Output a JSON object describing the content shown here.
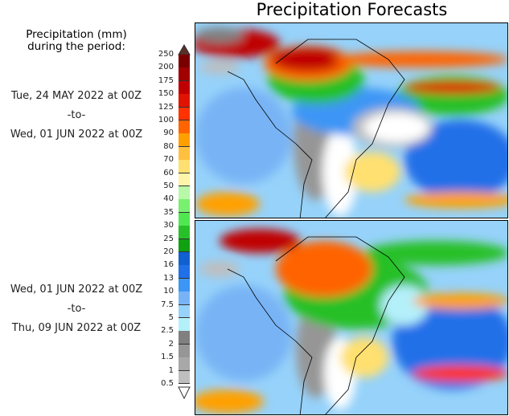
{
  "title": "Precipitation Forecasts",
  "legend": {
    "heading_line1": "Precipitation (mm)",
    "heading_line2": "during the period:",
    "labels": [
      "250",
      "200",
      "175",
      "150",
      "125",
      "100",
      "90",
      "80",
      "70",
      "60",
      "50",
      "40",
      "35",
      "30",
      "25",
      "20",
      "16",
      "13",
      "10",
      "7.5",
      "5",
      "2.5",
      "2",
      "1.5",
      "1",
      "0.5"
    ],
    "colors": [
      "#7a0000",
      "#a00000",
      "#c00000",
      "#e01400",
      "#ff3200",
      "#ff6400",
      "#ffa000",
      "#ffc040",
      "#ffe070",
      "#fff5a8",
      "#b8f8a8",
      "#78f070",
      "#50e850",
      "#28c028",
      "#10a010",
      "#1060d0",
      "#2070e8",
      "#3c96f5",
      "#78b4f5",
      "#96d2fa",
      "#b4f0fa",
      "#808080",
      "#969696",
      "#a8a8a8",
      "#bebebe"
    ],
    "over_color": "#5a3028",
    "under_color": "#ffffff"
  },
  "periods": [
    {
      "start": "Tue, 24 MAY 2022 at 00Z",
      "sep": "-to-",
      "end": "Wed, 01 JUN 2022 at 00Z"
    },
    {
      "start": "Wed, 01 JUN 2022 at 00Z",
      "sep": "-to-",
      "end": "Thu, 09 JUN 2022 at 00Z"
    }
  ]
}
